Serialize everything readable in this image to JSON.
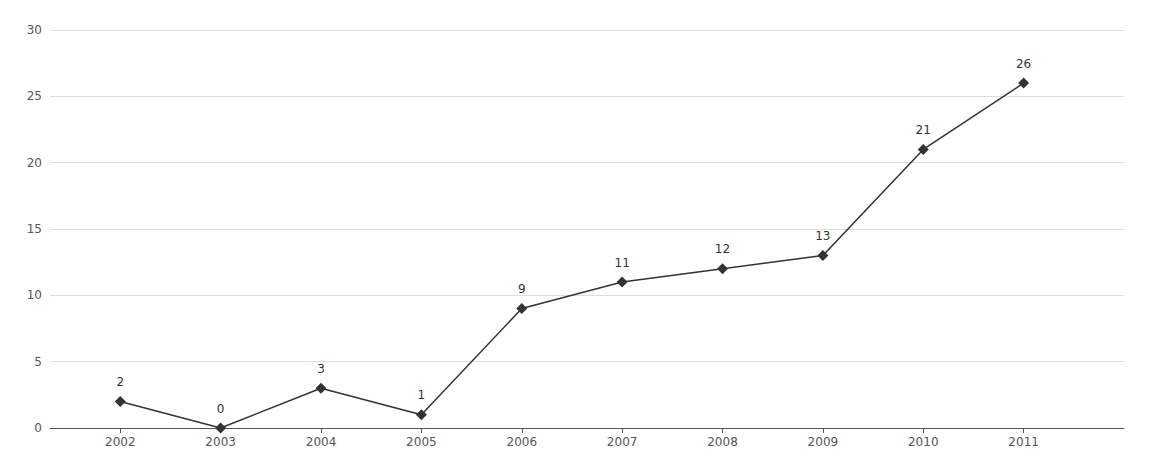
{
  "chart_data": {
    "type": "line",
    "x": [
      2002,
      2003,
      2004,
      2005,
      2006,
      2007,
      2008,
      2009,
      2010,
      2011
    ],
    "values": [
      2,
      0,
      3,
      1,
      9,
      11,
      12,
      13,
      21,
      26
    ],
    "xlim": [
      2001.3,
      2012.0
    ],
    "xticks": [
      2002,
      2003,
      2004,
      2005,
      2006,
      2007,
      2008,
      2009,
      2010,
      2011
    ],
    "ylim": [
      0,
      30
    ],
    "yticks": [
      0,
      5,
      10,
      15,
      20,
      25,
      30
    ],
    "color": "#333333",
    "marker": "diamond",
    "grid": true,
    "data_labels": true
  }
}
